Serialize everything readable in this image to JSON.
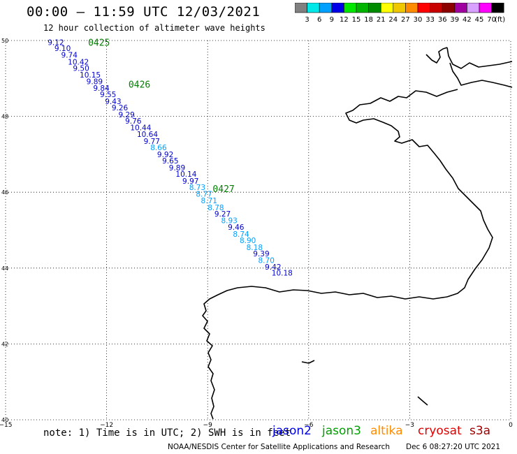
{
  "header": {
    "title": "00:00 – 11:59 UTC 12/03/2021",
    "subtitle": "12 hour collection of altimeter wave heights"
  },
  "colorbar": {
    "labels": [
      "3",
      "6",
      "9",
      "12",
      "15",
      "18",
      "21",
      "24",
      "27",
      "30",
      "33",
      "36",
      "39",
      "42",
      "45",
      "70"
    ],
    "colors": [
      "#808080",
      "#00e8e8",
      "#00a0ff",
      "#0000e8",
      "#00e800",
      "#00b400",
      "#008c00",
      "#ffff00",
      "#f0c800",
      "#ff8c00",
      "#ff0000",
      "#c80000",
      "#8c0000",
      "#a000a0",
      "#d8a0ff",
      "#ff00ff",
      "#000000"
    ],
    "unit": "(ft)"
  },
  "axes": {
    "x_ticks": [
      {
        "v": -15,
        "label": "−15"
      },
      {
        "v": -12,
        "label": "−12"
      },
      {
        "v": -9,
        "label": "−9"
      },
      {
        "v": -6,
        "label": "−6"
      },
      {
        "v": -3,
        "label": "−3"
      },
      {
        "v": 0,
        "label": "0"
      }
    ],
    "y_ticks": [
      {
        "v": 50,
        "label": "50"
      },
      {
        "v": 48,
        "label": "48"
      },
      {
        "v": 46,
        "label": "46"
      },
      {
        "v": 44,
        "label": "44"
      },
      {
        "v": 42,
        "label": "42"
      },
      {
        "v": 40,
        "label": "40"
      }
    ]
  },
  "track": {
    "times": [
      {
        "label": "0425",
        "lon": -12.55,
        "lat": 49.95
      },
      {
        "label": "0426",
        "lon": -11.35,
        "lat": 48.85
      },
      {
        "label": "0427",
        "lon": -8.85,
        "lat": 46.1
      }
    ],
    "points": [
      {
        "lon": -13.75,
        "lat": 49.95,
        "swh": "9.12",
        "color": "#0000d0"
      },
      {
        "lon": -13.55,
        "lat": 49.8,
        "swh": "9.10",
        "color": "#0000d0"
      },
      {
        "lon": -13.35,
        "lat": 49.62,
        "swh": "9.74",
        "color": "#0000d0"
      },
      {
        "lon": -13.15,
        "lat": 49.44,
        "swh": "10.42",
        "color": "#0000d0"
      },
      {
        "lon": -13.0,
        "lat": 49.27,
        "swh": "9.50",
        "color": "#0000d0"
      },
      {
        "lon": -12.8,
        "lat": 49.1,
        "swh": "10.15",
        "color": "#0000d0"
      },
      {
        "lon": -12.6,
        "lat": 48.92,
        "swh": "9.89",
        "color": "#0000d0"
      },
      {
        "lon": -12.4,
        "lat": 48.75,
        "swh": "9.84",
        "color": "#0000d0"
      },
      {
        "lon": -12.2,
        "lat": 48.58,
        "swh": "9.55",
        "color": "#0000d0"
      },
      {
        "lon": -12.05,
        "lat": 48.4,
        "swh": "9.43",
        "color": "#0000d0"
      },
      {
        "lon": -11.85,
        "lat": 48.23,
        "swh": "9.26",
        "color": "#0000d0"
      },
      {
        "lon": -11.65,
        "lat": 48.05,
        "swh": "9.29",
        "color": "#0000d0"
      },
      {
        "lon": -11.45,
        "lat": 47.88,
        "swh": "9.76",
        "color": "#0000d0"
      },
      {
        "lon": -11.3,
        "lat": 47.71,
        "swh": "10.44",
        "color": "#0000d0"
      },
      {
        "lon": -11.1,
        "lat": 47.53,
        "swh": "10.64",
        "color": "#0000d0"
      },
      {
        "lon": -10.9,
        "lat": 47.35,
        "swh": "9.77",
        "color": "#0000d0"
      },
      {
        "lon": -10.7,
        "lat": 47.18,
        "swh": "8.66",
        "color": "#00a0ff"
      },
      {
        "lon": -10.5,
        "lat": 47.0,
        "swh": "9.92",
        "color": "#0000d0"
      },
      {
        "lon": -10.35,
        "lat": 46.83,
        "swh": "9.65",
        "color": "#0000d0"
      },
      {
        "lon": -10.15,
        "lat": 46.65,
        "swh": "9.89",
        "color": "#0000d0"
      },
      {
        "lon": -9.95,
        "lat": 46.48,
        "swh": "10.14",
        "color": "#0000d0"
      },
      {
        "lon": -9.75,
        "lat": 46.3,
        "swh": "9.97",
        "color": "#0000d0"
      },
      {
        "lon": -9.55,
        "lat": 46.13,
        "swh": "8.73",
        "color": "#00a0ff"
      },
      {
        "lon": -9.35,
        "lat": 45.96,
        "swh": "8.77",
        "color": "#00a0ff"
      },
      {
        "lon": -9.2,
        "lat": 45.78,
        "swh": "8.71",
        "color": "#00a0ff"
      },
      {
        "lon": -9.0,
        "lat": 45.6,
        "swh": "8.78",
        "color": "#00a0ff"
      },
      {
        "lon": -8.8,
        "lat": 45.43,
        "swh": "9.27",
        "color": "#0000d0"
      },
      {
        "lon": -8.6,
        "lat": 45.26,
        "swh": "8.93",
        "color": "#00a0ff"
      },
      {
        "lon": -8.4,
        "lat": 45.08,
        "swh": "9.46",
        "color": "#0000d0"
      },
      {
        "lon": -8.25,
        "lat": 44.9,
        "swh": "8.74",
        "color": "#00a0ff"
      },
      {
        "lon": -8.05,
        "lat": 44.73,
        "swh": "8.90",
        "color": "#00a0ff"
      },
      {
        "lon": -7.85,
        "lat": 44.55,
        "swh": "8.18",
        "color": "#00a0ff"
      },
      {
        "lon": -7.65,
        "lat": 44.38,
        "swh": "9.39",
        "color": "#0000d0"
      },
      {
        "lon": -7.5,
        "lat": 44.21,
        "swh": "8.70",
        "color": "#00a0ff"
      },
      {
        "lon": -7.3,
        "lat": 44.03,
        "swh": "9.42",
        "color": "#0000d0"
      },
      {
        "lon": -7.1,
        "lat": 43.88,
        "swh": "10.18",
        "color": "#0000d0"
      }
    ]
  },
  "footer": {
    "note": "note: 1) Time is in UTC; 2) SWH is in feet",
    "missions": [
      {
        "name": "jason2",
        "color": "#0000e0"
      },
      {
        "name": "jason3",
        "color": "#00a000"
      },
      {
        "name": "altika",
        "color": "#ff8c00"
      },
      {
        "name": "cryosat",
        "color": "#e00000"
      },
      {
        "name": "s3a",
        "color": "#a00000"
      }
    ],
    "credit": "NOAA/NESDIS Center for Satellite Applications and Research",
    "timestamp": "Dec  6 08:27:20 UTC 2021"
  },
  "colors": {
    "time_label": "#008000",
    "grid": "#000000"
  }
}
